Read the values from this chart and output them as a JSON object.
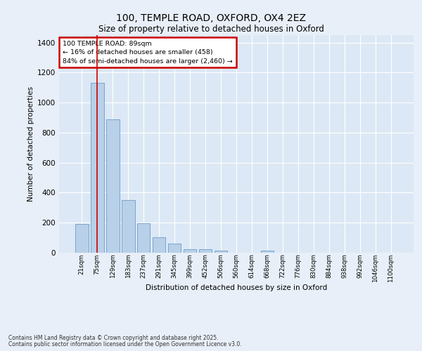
{
  "title_line1": "100, TEMPLE ROAD, OXFORD, OX4 2EZ",
  "title_line2": "Size of property relative to detached houses in Oxford",
  "xlabel": "Distribution of detached houses by size in Oxford",
  "ylabel": "Number of detached properties",
  "categories": [
    "21sqm",
    "75sqm",
    "129sqm",
    "183sqm",
    "237sqm",
    "291sqm",
    "345sqm",
    "399sqm",
    "452sqm",
    "506sqm",
    "560sqm",
    "614sqm",
    "668sqm",
    "722sqm",
    "776sqm",
    "830sqm",
    "884sqm",
    "938sqm",
    "992sqm",
    "1046sqm",
    "1100sqm"
  ],
  "values": [
    190,
    1130,
    890,
    350,
    195,
    105,
    60,
    25,
    22,
    14,
    0,
    0,
    12,
    0,
    0,
    0,
    0,
    0,
    0,
    0,
    0
  ],
  "bar_color": "#b8d0e8",
  "bar_edge_color": "#5b8fc2",
  "plot_bg_color": "#dce8f5",
  "fig_bg_color": "#e8eff8",
  "grid_color": "#ffffff",
  "vline_color": "#cc0000",
  "vline_index": 1,
  "annotation_text": "100 TEMPLE ROAD: 89sqm\n← 16% of detached houses are smaller (458)\n84% of semi-detached houses are larger (2,460) →",
  "annotation_box_edgecolor": "#cc0000",
  "ylim": [
    0,
    1450
  ],
  "yticks": [
    0,
    200,
    400,
    600,
    800,
    1000,
    1200,
    1400
  ],
  "footer_line1": "Contains HM Land Registry data © Crown copyright and database right 2025.",
  "footer_line2": "Contains public sector information licensed under the Open Government Licence v3.0."
}
